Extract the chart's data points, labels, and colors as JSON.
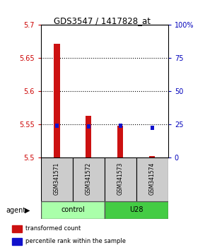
{
  "title": "GDS3547 / 1417828_at",
  "samples": [
    "GSM341571",
    "GSM341572",
    "GSM341573",
    "GSM341574"
  ],
  "groups": [
    "control",
    "control",
    "U28",
    "U28"
  ],
  "transformed_counts": [
    5.672,
    5.563,
    5.548,
    5.502
  ],
  "percentile_ranks": [
    24.0,
    23.5,
    24.0,
    22.5
  ],
  "bar_bottom": 5.5,
  "ylim_left": [
    5.5,
    5.7
  ],
  "ylim_right": [
    0,
    100
  ],
  "yticks_left": [
    5.5,
    5.55,
    5.6,
    5.65,
    5.7
  ],
  "yticks_right": [
    0,
    25,
    50,
    75,
    100
  ],
  "ytick_labels_left": [
    "5.5",
    "5.55",
    "5.6",
    "5.65",
    "5.7"
  ],
  "ytick_labels_right": [
    "0",
    "25",
    "50",
    "75",
    "100%"
  ],
  "left_tick_color": "#cc0000",
  "right_tick_color": "#0000bb",
  "bar_red_color": "#cc1111",
  "bar_blue_color": "#1111cc",
  "grid_color": "#000000",
  "control_color": "#aaffaa",
  "u28_color": "#44cc44",
  "sample_box_color": "#cccccc",
  "legend_red": "transformed count",
  "legend_blue": "percentile rank within the sample",
  "agent_label": "agent",
  "bar_width": 0.18
}
